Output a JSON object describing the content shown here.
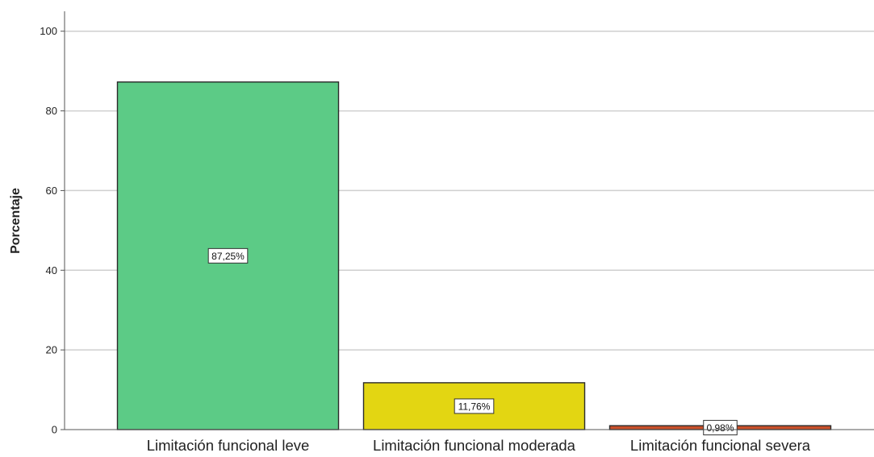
{
  "chart_data": {
    "type": "bar",
    "ylabel": "Porcentaje",
    "xlabel": "",
    "ylim": [
      0,
      105
    ],
    "yticks": [
      0,
      20,
      40,
      60,
      80,
      100
    ],
    "grid": true,
    "categories": [
      "Limitación funcional leve",
      "Limitación funcional moderada",
      "Limitación funcional severa"
    ],
    "values": [
      87.25,
      11.76,
      0.98
    ],
    "data_labels": [
      "87,25%",
      "11,76%",
      "0,98%"
    ],
    "colors": [
      "#5ccb86",
      "#e3d612",
      "#c9502a"
    ]
  }
}
